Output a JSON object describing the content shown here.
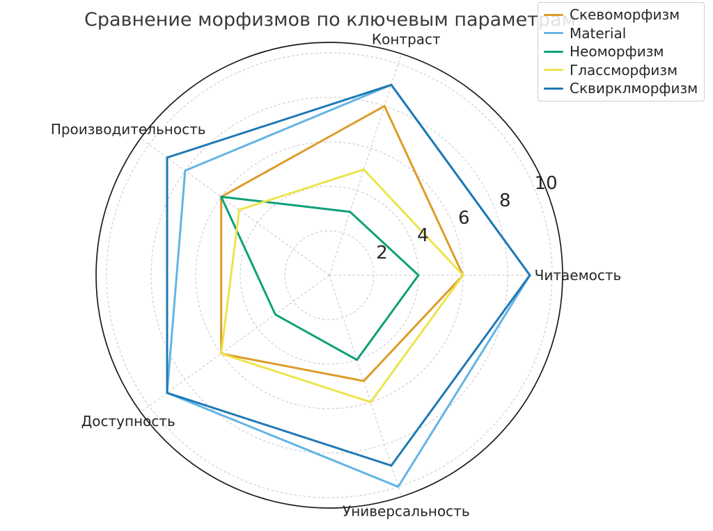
{
  "title": "Сравнение морфизмов по ключевым параметрам",
  "chart_data": {
    "type": "radar",
    "title": "Сравнение морфизмов по ключевым параметрам",
    "categories": [
      "Контраст",
      "Читаемость",
      "Универсальность",
      "Доступность",
      "Производительность"
    ],
    "category_angles_deg": [
      72,
      0,
      288,
      216,
      144
    ],
    "series": [
      {
        "name": "Скевоморфизм",
        "color": "#DD9B28",
        "values": [
          8,
          6,
          5,
          6,
          6
        ]
      },
      {
        "name": "Material",
        "color": "#62B4E4",
        "values": [
          9,
          9,
          10,
          9,
          8
        ]
      },
      {
        "name": "Неоморфизм",
        "color": "#0CA077",
        "values": [
          3,
          4,
          4,
          3,
          6
        ]
      },
      {
        "name": "Глассморфизм",
        "color": "#EDE44A",
        "values": [
          5,
          6,
          6,
          6,
          5
        ]
      },
      {
        "name": "Сквирклморфизм",
        "color": "#1F78B4",
        "values": [
          9,
          9,
          9,
          9,
          9
        ]
      }
    ],
    "radial_ticks": [
      2,
      4,
      6,
      8,
      10
    ],
    "r_min": 0,
    "r_max": 10,
    "grid": true,
    "grid_style": "dashed",
    "fill": false,
    "tick_label_angle_deg": 23,
    "legend_position": "top-right"
  },
  "colors": {
    "title_text": "#3a3a3a",
    "axis_label_text": "#262626",
    "tick_label_text": "#262626",
    "grid_line": "#c4c4cd",
    "outer_circle": "#1a1a1a",
    "legend_border": "#cccccc"
  }
}
